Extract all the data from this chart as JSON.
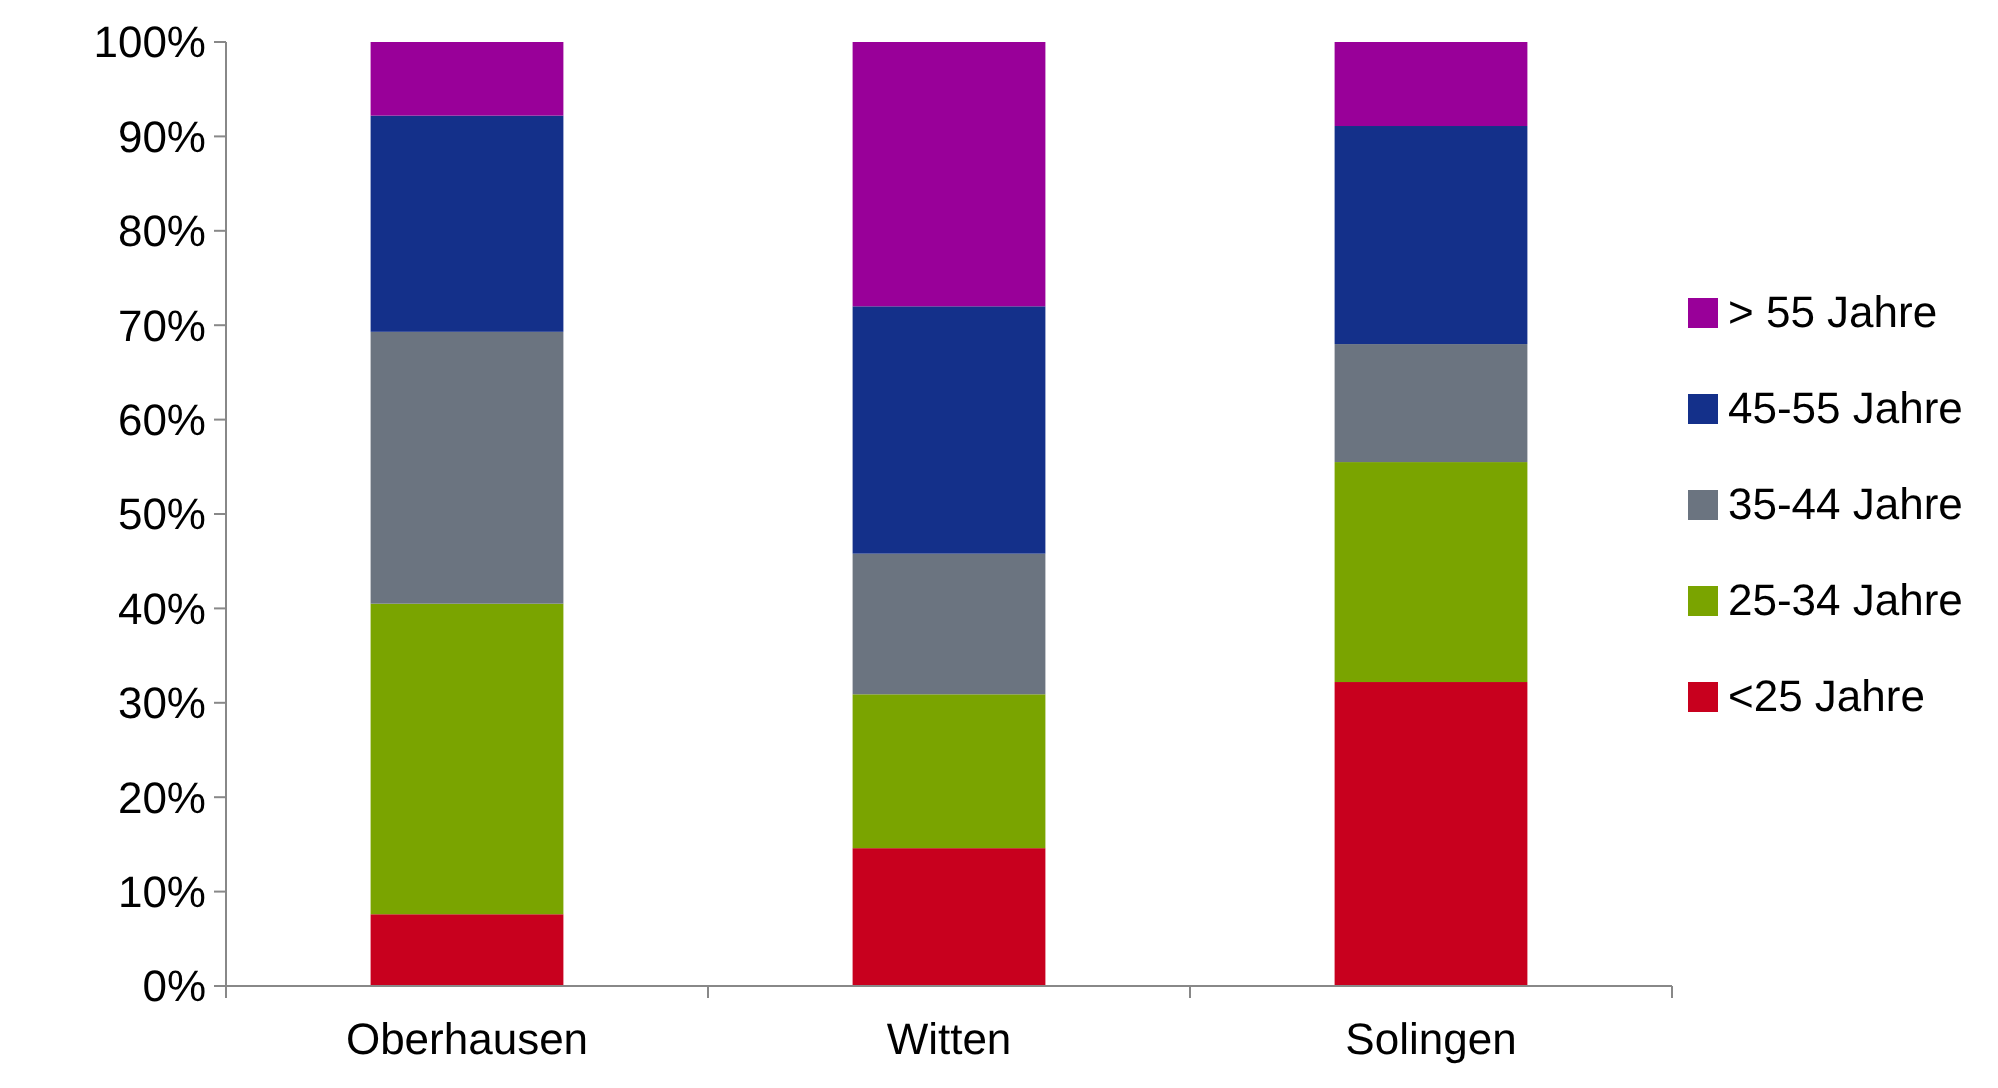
{
  "chart_data": {
    "type": "bar",
    "stacked": true,
    "categories": [
      "Oberhausen",
      "Witten",
      "Solingen"
    ],
    "series": [
      {
        "name": "<25 Jahre",
        "color": "#c8001e",
        "values": [
          7.6,
          14.6,
          32.2
        ]
      },
      {
        "name": "25-34 Jahre",
        "color": "#7aa400",
        "values": [
          32.9,
          16.3,
          23.3
        ]
      },
      {
        "name": "35-44 Jahre",
        "color": "#6b7480",
        "values": [
          28.8,
          14.9,
          12.5
        ]
      },
      {
        "name": "45-55 Jahre",
        "color": "#14308a",
        "values": [
          22.9,
          26.2,
          23.1
        ]
      },
      {
        "name": "> 55 Jahre",
        "color": "#990099",
        "values": [
          7.8,
          28.0,
          8.9
        ]
      }
    ],
    "ylim": [
      0,
      100
    ],
    "yticks": [
      {
        "value": 0,
        "label": "0%"
      },
      {
        "value": 10,
        "label": "10%"
      },
      {
        "value": 20,
        "label": "20%"
      },
      {
        "value": 30,
        "label": "30%"
      },
      {
        "value": 40,
        "label": "40%"
      },
      {
        "value": 50,
        "label": "50%"
      },
      {
        "value": 60,
        "label": "60%"
      },
      {
        "value": 70,
        "label": "70%"
      },
      {
        "value": 80,
        "label": "80%"
      },
      {
        "value": 90,
        "label": "90%"
      },
      {
        "value": 100,
        "label": "100%"
      }
    ],
    "grid": false,
    "legend": "right"
  }
}
